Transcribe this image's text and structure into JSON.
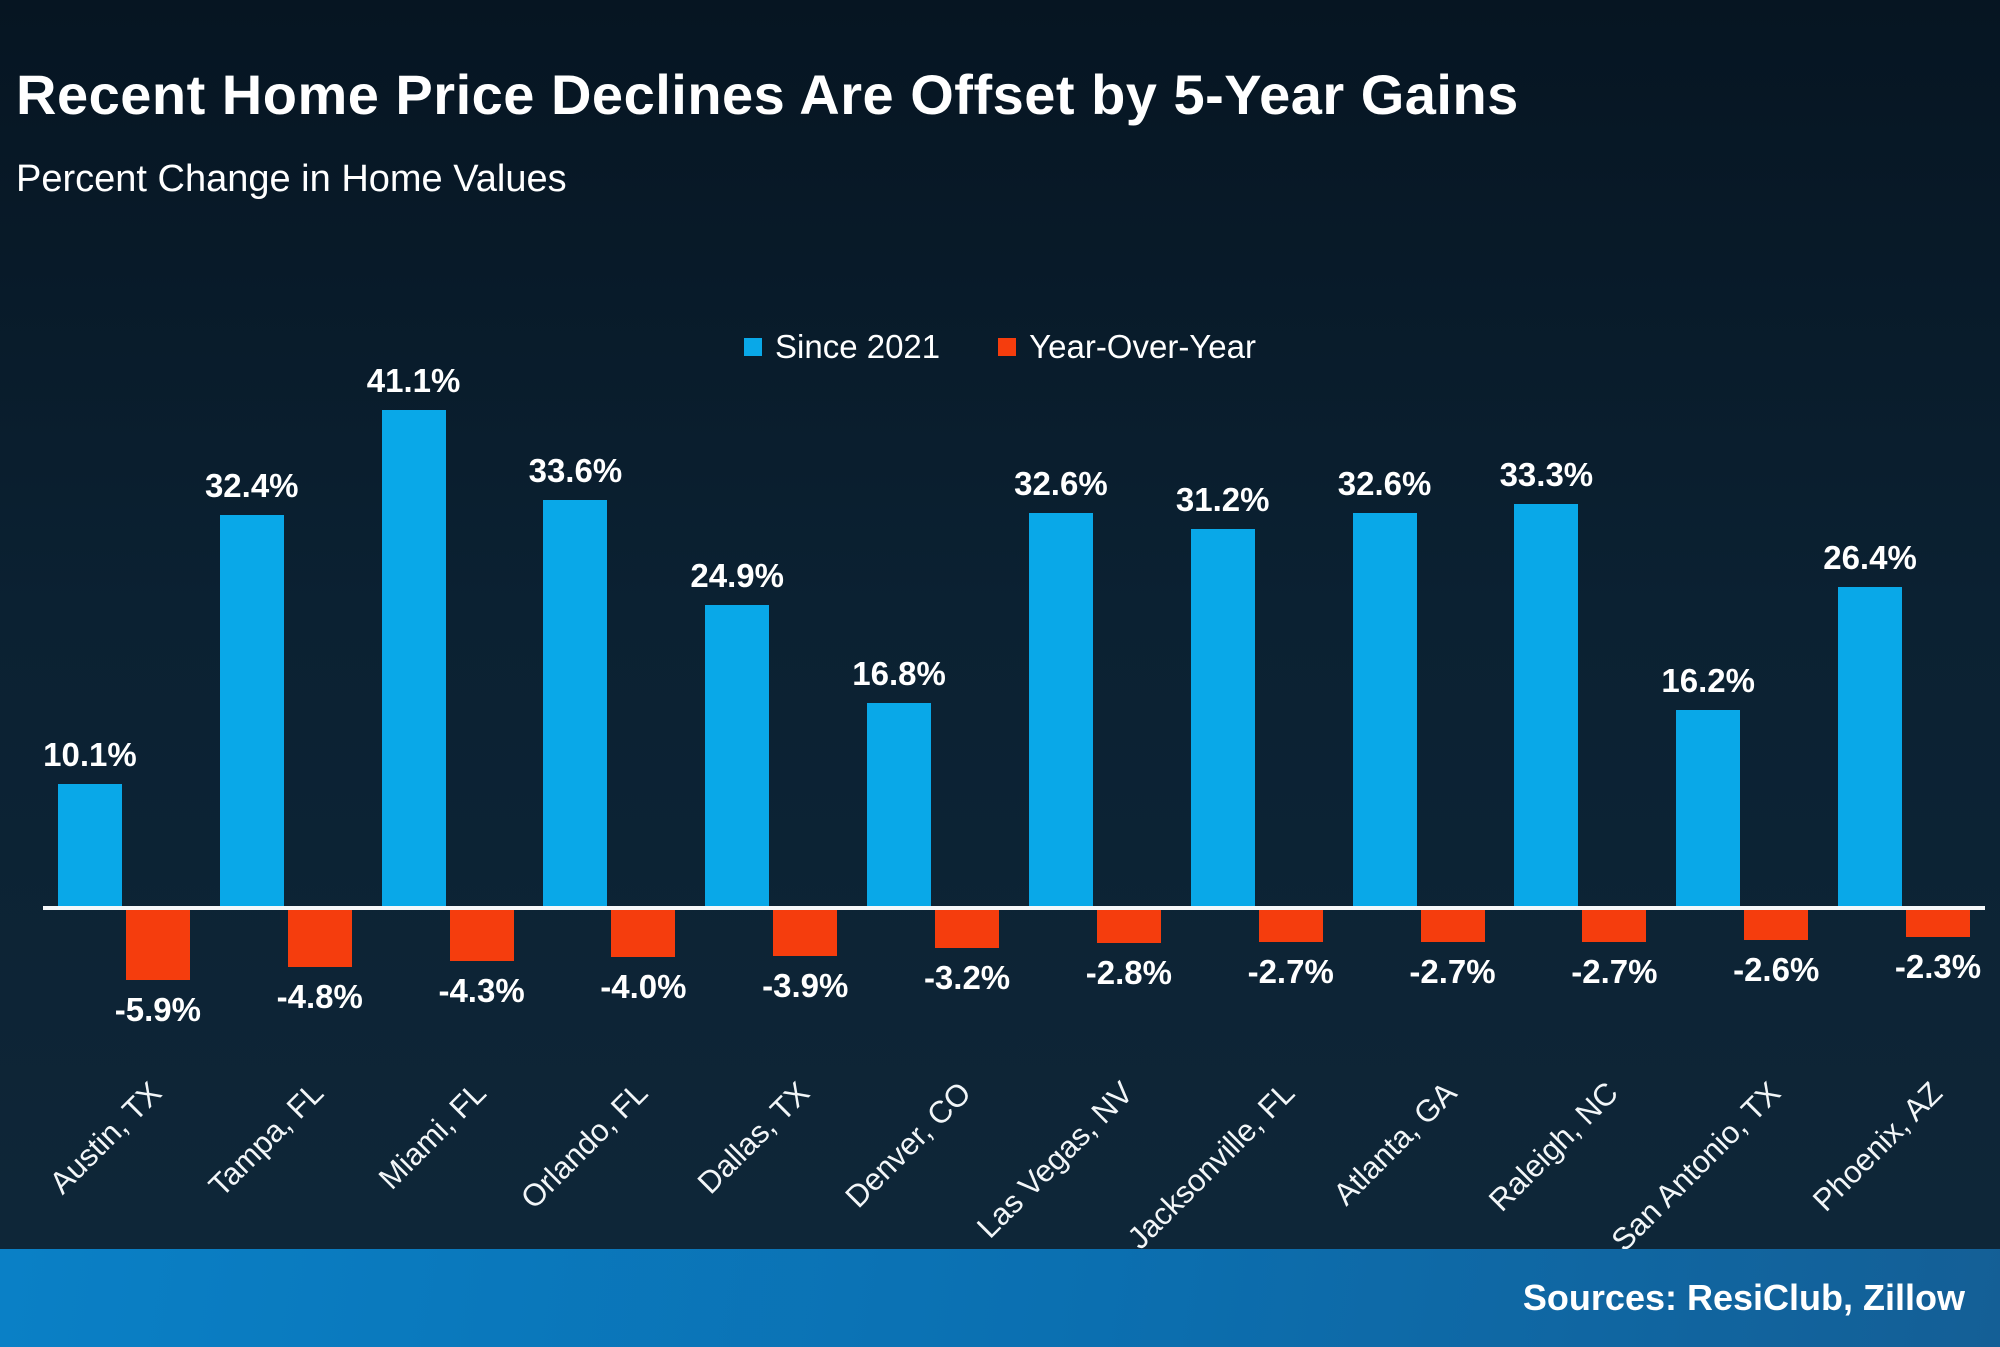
{
  "header": {
    "title": "Recent Home Price Declines Are Offset by 5-Year Gains",
    "subtitle": "Percent Change in Home Values"
  },
  "footer": {
    "sources": "Sources: ResiClub, Zillow"
  },
  "colors": {
    "background_top": "#061522",
    "background_bottom": "#0f2739",
    "axis_line": "#f5f8fa",
    "footer_left": "#0a80c6",
    "footer_right": "#145f96",
    "text": "#ffffff"
  },
  "chart_data": {
    "type": "bar",
    "title": "Recent Home Price Declines Are Offset by 5-Year Gains",
    "subtitle": "Percent Change in Home Values",
    "xlabel": "",
    "ylabel": "Percent Change in Home Values",
    "grid": false,
    "legend_position": "top-center",
    "value_suffix": "%",
    "ylim": [
      -8,
      45
    ],
    "categories": [
      "Austin, TX",
      "Tampa, FL",
      "Miami, FL",
      "Orlando, FL",
      "Dallas, TX",
      "Denver, CO",
      "Las Vegas, NV",
      "Jacksonville, FL",
      "Atlanta, GA",
      "Raleigh, NC",
      "San Antonio, TX",
      "Phoenix, AZ"
    ],
    "series": [
      {
        "name": "Since 2021",
        "color": "#09a8e8",
        "values": [
          10.1,
          32.4,
          41.1,
          33.6,
          24.9,
          16.8,
          32.6,
          31.2,
          32.6,
          33.3,
          16.2,
          26.4
        ]
      },
      {
        "name": "Year-Over-Year",
        "color": "#f53d0d",
        "values": [
          -5.9,
          -4.8,
          -4.3,
          -4.0,
          -3.9,
          -3.2,
          -2.8,
          -2.7,
          -2.7,
          -2.7,
          -2.6,
          -2.3
        ]
      }
    ]
  }
}
